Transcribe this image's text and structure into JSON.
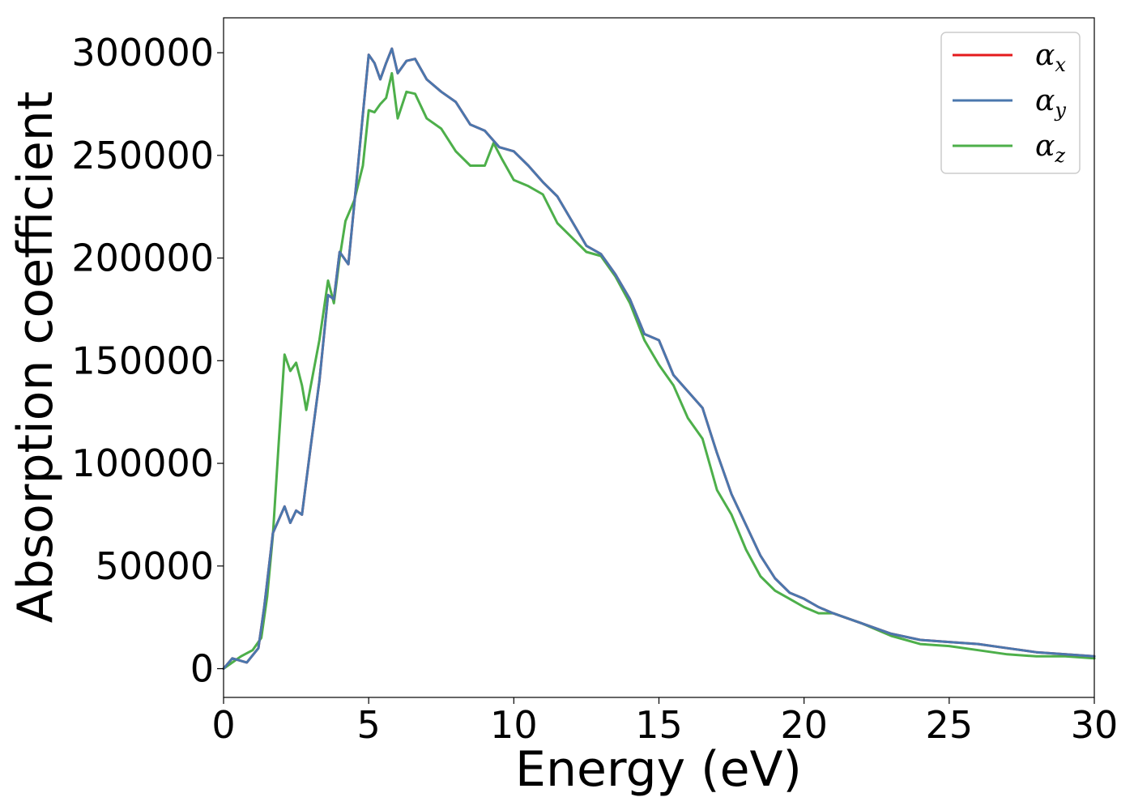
{
  "chart_data": {
    "type": "line",
    "xlabel": "Energy (eV)",
    "ylabel": "Absorption coefficient",
    "xlim": [
      0,
      30
    ],
    "ylim": [
      -14000,
      317000
    ],
    "xticks": [
      "0",
      "5",
      "10",
      "15",
      "20",
      "25",
      "30"
    ],
    "yticks": [
      "0",
      "50000",
      "100000",
      "150000",
      "200000",
      "250000",
      "300000"
    ],
    "grid": false,
    "legend_position": "top-right",
    "series": [
      {
        "name": "α",
        "sub": "x",
        "color": "#e41a1c",
        "x": [
          0,
          0.3,
          0.8,
          1.2,
          1.4,
          1.7,
          2.1,
          2.3,
          2.5,
          2.7,
          3.0,
          3.3,
          3.6,
          3.8,
          4.0,
          4.3,
          4.6,
          4.8,
          5.0,
          5.2,
          5.4,
          5.6,
          5.8,
          6.0,
          6.3,
          6.6,
          7.0,
          7.5,
          8.0,
          8.5,
          9.0,
          9.5,
          10.0,
          10.5,
          11.0,
          11.5,
          12.0,
          12.5,
          13.0,
          13.5,
          14.0,
          14.5,
          15.0,
          15.5,
          16.0,
          16.5,
          17.0,
          17.5,
          18.0,
          18.5,
          19.0,
          19.5,
          20.0,
          20.5,
          21.0,
          22.0,
          23.0,
          24.0,
          25.0,
          26.0,
          27.0,
          28.0,
          29.0,
          30.0
        ],
        "values": [
          0,
          5000,
          3000,
          10000,
          30000,
          66000,
          79000,
          71000,
          77000,
          75000,
          108000,
          140000,
          182000,
          180000,
          203000,
          197000,
          240000,
          270000,
          299000,
          295000,
          287000,
          295000,
          302000,
          290000,
          296000,
          297000,
          287000,
          281000,
          276000,
          265000,
          262000,
          254000,
          252000,
          245000,
          237000,
          230000,
          218000,
          206000,
          202000,
          192000,
          180000,
          163000,
          160000,
          143000,
          135000,
          127000,
          105000,
          85000,
          70000,
          55000,
          44000,
          37000,
          34000,
          30000,
          27000,
          22000,
          17000,
          14000,
          13000,
          12000,
          10000,
          8000,
          7000,
          6000
        ]
      },
      {
        "name": "α",
        "sub": "y",
        "color": "#4a77ad",
        "x": [
          0,
          0.3,
          0.8,
          1.2,
          1.4,
          1.7,
          2.1,
          2.3,
          2.5,
          2.7,
          3.0,
          3.3,
          3.6,
          3.8,
          4.0,
          4.3,
          4.6,
          4.8,
          5.0,
          5.2,
          5.4,
          5.6,
          5.8,
          6.0,
          6.3,
          6.6,
          7.0,
          7.5,
          8.0,
          8.5,
          9.0,
          9.5,
          10.0,
          10.5,
          11.0,
          11.5,
          12.0,
          12.5,
          13.0,
          13.5,
          14.0,
          14.5,
          15.0,
          15.5,
          16.0,
          16.5,
          17.0,
          17.5,
          18.0,
          18.5,
          19.0,
          19.5,
          20.0,
          20.5,
          21.0,
          22.0,
          23.0,
          24.0,
          25.0,
          26.0,
          27.0,
          28.0,
          29.0,
          30.0
        ],
        "values": [
          0,
          5000,
          3000,
          10000,
          30000,
          66000,
          79000,
          71000,
          77000,
          75000,
          108000,
          140000,
          182000,
          180000,
          203000,
          197000,
          240000,
          270000,
          299000,
          295000,
          287000,
          295000,
          302000,
          290000,
          296000,
          297000,
          287000,
          281000,
          276000,
          265000,
          262000,
          254000,
          252000,
          245000,
          237000,
          230000,
          218000,
          206000,
          202000,
          192000,
          180000,
          163000,
          160000,
          143000,
          135000,
          127000,
          105000,
          85000,
          70000,
          55000,
          44000,
          37000,
          34000,
          30000,
          27000,
          22000,
          17000,
          14000,
          13000,
          12000,
          10000,
          8000,
          7000,
          6000
        ]
      },
      {
        "name": "α",
        "sub": "z",
        "color": "#4daf4a",
        "x": [
          0,
          0.3,
          0.6,
          1.0,
          1.3,
          1.5,
          1.7,
          1.9,
          2.1,
          2.3,
          2.5,
          2.7,
          2.85,
          3.1,
          3.3,
          3.6,
          3.8,
          4.0,
          4.2,
          4.5,
          4.8,
          5.0,
          5.2,
          5.4,
          5.6,
          5.8,
          6.0,
          6.3,
          6.6,
          7.0,
          7.5,
          8.0,
          8.5,
          9.0,
          9.3,
          9.6,
          10.0,
          10.5,
          11.0,
          11.5,
          12.0,
          12.5,
          13.0,
          13.5,
          14.0,
          14.5,
          15.0,
          15.5,
          16.0,
          16.5,
          17.0,
          17.5,
          18.0,
          18.5,
          19.0,
          19.5,
          20.0,
          20.5,
          21.0,
          22.0,
          23.0,
          24.0,
          25.0,
          26.0,
          27.0,
          28.0,
          29.0,
          30.0
        ],
        "values": [
          0,
          3000,
          6000,
          9000,
          15000,
          35000,
          65000,
          110000,
          153000,
          145000,
          149000,
          138000,
          126000,
          145000,
          160000,
          189000,
          178000,
          200000,
          218000,
          228000,
          245000,
          272000,
          271000,
          275000,
          278000,
          290000,
          268000,
          281000,
          280000,
          268000,
          263000,
          252000,
          245000,
          245000,
          256000,
          248000,
          238000,
          235000,
          231000,
          217000,
          210000,
          203000,
          201000,
          191000,
          178000,
          160000,
          148000,
          138000,
          122000,
          112000,
          87000,
          75000,
          58000,
          45000,
          38000,
          34000,
          30000,
          27000,
          27000,
          22000,
          16000,
          12000,
          11000,
          9000,
          7000,
          6000,
          6000,
          5000
        ]
      }
    ]
  }
}
